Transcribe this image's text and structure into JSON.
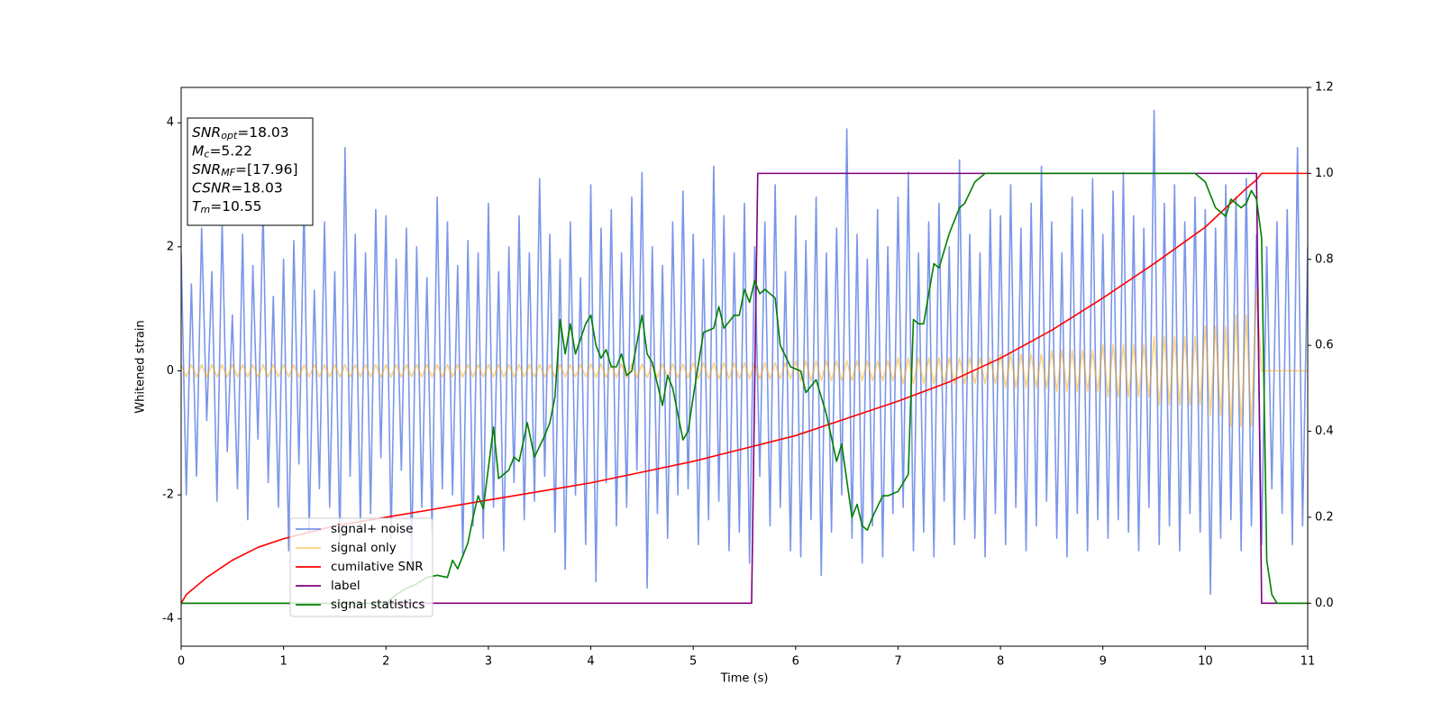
{
  "chart_data": {
    "type": "line",
    "xlabel": "Time (s)",
    "ylabel": "Whitened strain",
    "xlim": [
      0,
      11
    ],
    "xticks": [
      0,
      1,
      2,
      3,
      4,
      5,
      6,
      7,
      8,
      9,
      10,
      11
    ],
    "ylim": [
      -4.44,
      4.57
    ],
    "yticks": [
      -4,
      -2,
      0,
      2,
      4
    ],
    "y2lim": [
      -0.1,
      1.2
    ],
    "y2ticks": [
      {
        "value": 0,
        "label": "0.0"
      },
      {
        "value": 0.2,
        "label": "0.2"
      },
      {
        "value": 0.4,
        "label": "0.4"
      },
      {
        "value": 0.6,
        "label": "0.6"
      },
      {
        "value": 0.8,
        "label": "0.8"
      },
      {
        "value": 1,
        "label": "1.0"
      },
      {
        "value": 1.2,
        "label": "1.2"
      }
    ],
    "legend": "lower left",
    "annotation": [
      {
        "symbol": "SNR",
        "sub": "opt",
        "text": "=18.03"
      },
      {
        "symbol": "M",
        "sub": "c",
        "text": "=5.22"
      },
      {
        "symbol": "SNR",
        "sub": "MF",
        "text": "=[17.96]"
      },
      {
        "symbol": "CSNR",
        "sub": "",
        "text": "=18.03"
      },
      {
        "symbol": "T",
        "sub": "m",
        "text": "=10.55"
      }
    ],
    "x": [
      0,
      0.05,
      0.1,
      0.15,
      0.2,
      0.25,
      0.3,
      0.35,
      0.4,
      0.45,
      0.5,
      0.55,
      0.6,
      0.65,
      0.7,
      0.75,
      0.8,
      0.85,
      0.9,
      0.95,
      1,
      1.05,
      1.1,
      1.15,
      1.2,
      1.25,
      1.3,
      1.35,
      1.4,
      1.45,
      1.5,
      1.55,
      1.6,
      1.65,
      1.7,
      1.75,
      1.8,
      1.85,
      1.9,
      1.95,
      2,
      2.05,
      2.1,
      2.15,
      2.2,
      2.25,
      2.3,
      2.35,
      2.4,
      2.45,
      2.5,
      2.55,
      2.6,
      2.65,
      2.7,
      2.75,
      2.8,
      2.85,
      2.9,
      2.95,
      3,
      3.05,
      3.1,
      3.15,
      3.2,
      3.25,
      3.3,
      3.35,
      3.4,
      3.45,
      3.5,
      3.55,
      3.6,
      3.65,
      3.7,
      3.75,
      3.8,
      3.85,
      3.9,
      3.95,
      4,
      4.05,
      4.1,
      4.15,
      4.2,
      4.25,
      4.3,
      4.35,
      4.4,
      4.45,
      4.5,
      4.55,
      4.6,
      4.65,
      4.7,
      4.75,
      4.8,
      4.85,
      4.9,
      4.95,
      5,
      5.05,
      5.1,
      5.15,
      5.2,
      5.25,
      5.3,
      5.35,
      5.4,
      5.45,
      5.5,
      5.55,
      5.6,
      5.65,
      5.7,
      5.75,
      5.8,
      5.85,
      5.9,
      5.95,
      6,
      6.05,
      6.1,
      6.15,
      6.2,
      6.25,
      6.3,
      6.35,
      6.4,
      6.45,
      6.5,
      6.55,
      6.6,
      6.65,
      6.7,
      6.75,
      6.8,
      6.85,
      6.9,
      6.95,
      7,
      7.05,
      7.1,
      7.15,
      7.2,
      7.25,
      7.3,
      7.35,
      7.4,
      7.45,
      7.5,
      7.55,
      7.6,
      7.65,
      7.7,
      7.75,
      7.8,
      7.85,
      7.9,
      7.95,
      8,
      8.05,
      8.1,
      8.15,
      8.2,
      8.25,
      8.3,
      8.35,
      8.4,
      8.45,
      8.5,
      8.55,
      8.6,
      8.65,
      8.7,
      8.75,
      8.8,
      8.85,
      8.9,
      8.95,
      9,
      9.05,
      9.1,
      9.15,
      9.2,
      9.25,
      9.3,
      9.35,
      9.4,
      9.45,
      9.5,
      9.55,
      9.6,
      9.65,
      9.7,
      9.75,
      9.8,
      9.85,
      9.9,
      9.95,
      10,
      10.05,
      10.1,
      10.15,
      10.2,
      10.25,
      10.3,
      10.35,
      10.4,
      10.45,
      10.5,
      10.55,
      10.6,
      10.65,
      10.7,
      10.75,
      10.8,
      10.85,
      10.9,
      10.95,
      11
    ],
    "series": [
      {
        "name": "signal+ noise",
        "color": "#4169e1",
        "alpha": 0.7,
        "values": [
          1.9,
          -2.0,
          1.4,
          -1.7,
          2.3,
          -0.8,
          1.6,
          -2.1,
          2.4,
          -1.3,
          0.9,
          -1.9,
          2.2,
          -2.4,
          1.7,
          -1.1,
          2.6,
          -1.8,
          1.2,
          -2.2,
          1.8,
          -2.9,
          2.1,
          -1.5,
          2.7,
          -2.6,
          1.3,
          -1.9,
          2.4,
          -2.2,
          1.6,
          -2.8,
          3.6,
          -1.7,
          2.2,
          -2.5,
          1.9,
          -2.3,
          2.6,
          -1.4,
          2.5,
          -2.7,
          1.8,
          -1.6,
          2.3,
          -3.1,
          2.0,
          -2.2,
          1.5,
          -2.6,
          2.8,
          -1.9,
          2.4,
          -2.0,
          1.7,
          -3.0,
          2.1,
          -2.5,
          1.9,
          -2.7,
          2.7,
          -2.2,
          1.6,
          -2.9,
          2.0,
          -1.8,
          2.5,
          -2.4,
          1.9,
          -2.1,
          3.1,
          -1.7,
          2.2,
          -2.6,
          1.8,
          -3.2,
          2.4,
          -2.0,
          1.5,
          -2.8,
          3.0,
          -3.4,
          2.3,
          -1.8,
          2.6,
          -2.5,
          1.9,
          -2.2,
          2.8,
          -1.6,
          3.2,
          -3.5,
          2.0,
          -2.3,
          1.7,
          -2.7,
          2.4,
          -2.0,
          2.9,
          -1.9,
          2.2,
          -2.8,
          1.8,
          -2.4,
          3.3,
          -2.1,
          2.5,
          -2.9,
          1.9,
          -2.6,
          2.7,
          -3.1,
          2.0,
          -1.7,
          2.4,
          -2.5,
          3.0,
          -2.2,
          1.6,
          -2.9,
          2.5,
          -3.0,
          2.1,
          -2.4,
          2.8,
          -3.3,
          1.9,
          -2.6,
          2.3,
          -2.0,
          3.9,
          -2.7,
          2.2,
          -3.1,
          1.8,
          -2.5,
          2.6,
          -3.0,
          2.0,
          -2.3,
          2.8,
          -2.2,
          3.2,
          -2.9,
          1.9,
          -2.6,
          2.4,
          -3.0,
          2.7,
          -2.1,
          2.0,
          -2.8,
          3.4,
          -2.4,
          2.2,
          -2.7,
          1.9,
          -3.0,
          2.6,
          -2.3,
          2.5,
          -2.8,
          3.0,
          -2.2,
          2.3,
          -2.9,
          2.7,
          -2.5,
          3.3,
          -2.1,
          2.4,
          -2.7,
          1.9,
          -3.0,
          2.8,
          -2.3,
          2.6,
          -2.9,
          3.1,
          -2.4,
          2.2,
          -2.7,
          2.9,
          -2.4,
          3.2,
          -2.6,
          2.5,
          -2.9,
          2.3,
          -2.2,
          4.2,
          -2.8,
          2.7,
          -2.5,
          3.0,
          -2.9,
          2.4,
          -2.3,
          2.8,
          -2.6,
          2.6,
          -3.6,
          2.3,
          -2.7,
          3.0,
          -2.4,
          2.8,
          -2.9,
          3.1,
          -2.5,
          2.2,
          -2.8,
          2.0,
          -1.9,
          2.4,
          -2.3,
          2.6,
          -2.8,
          3.6,
          -2.5,
          2.0
        ]
      },
      {
        "name": "signal only",
        "color": "#ffa500",
        "alpha": 0.5,
        "values": [
          0.1,
          -0.1,
          0.1,
          -0.1,
          0.1,
          -0.1,
          0.1,
          -0.1,
          0.1,
          -0.1,
          0.1,
          -0.1,
          0.1,
          -0.1,
          0.1,
          -0.1,
          0.1,
          -0.1,
          0.1,
          -0.1,
          0.1,
          -0.1,
          0.1,
          -0.1,
          0.1,
          -0.1,
          0.1,
          -0.1,
          0.1,
          -0.1,
          0.1,
          -0.1,
          0.1,
          -0.1,
          0.1,
          -0.1,
          0.1,
          -0.1,
          0.1,
          -0.1,
          0.1,
          -0.1,
          0.1,
          -0.1,
          0.1,
          -0.1,
          0.1,
          -0.1,
          0.1,
          -0.1,
          0.1,
          -0.1,
          0.1,
          -0.1,
          0.1,
          -0.1,
          0.1,
          -0.1,
          0.1,
          -0.1,
          0.1,
          -0.1,
          0.1,
          -0.1,
          0.1,
          -0.1,
          0.1,
          -0.1,
          0.1,
          -0.1,
          0.1,
          -0.1,
          0.1,
          -0.1,
          0.1,
          -0.1,
          0.1,
          -0.1,
          0.1,
          -0.1,
          0.11,
          -0.11,
          0.11,
          -0.11,
          0.11,
          -0.11,
          0.11,
          -0.11,
          0.11,
          -0.11,
          0.11,
          -0.11,
          0.11,
          -0.11,
          0.11,
          -0.11,
          0.11,
          -0.11,
          0.11,
          -0.11,
          0.13,
          -0.13,
          0.13,
          -0.13,
          0.13,
          -0.13,
          0.13,
          -0.13,
          0.13,
          -0.13,
          0.13,
          -0.13,
          0.13,
          -0.13,
          0.13,
          -0.13,
          0.13,
          -0.13,
          0.13,
          -0.13,
          0.16,
          -0.16,
          0.16,
          -0.16,
          0.16,
          -0.16,
          0.16,
          -0.16,
          0.16,
          -0.16,
          0.16,
          -0.16,
          0.16,
          -0.16,
          0.16,
          -0.16,
          0.16,
          -0.16,
          0.16,
          -0.16,
          0.21,
          -0.21,
          0.21,
          -0.21,
          0.21,
          -0.21,
          0.21,
          -0.21,
          0.21,
          -0.21,
          0.21,
          -0.21,
          0.21,
          -0.21,
          0.21,
          -0.21,
          0.21,
          -0.21,
          0.21,
          -0.21,
          0.27,
          -0.27,
          0.27,
          -0.27,
          0.27,
          -0.27,
          0.27,
          -0.27,
          0.27,
          -0.27,
          0.33,
          -0.33,
          0.33,
          -0.33,
          0.33,
          -0.33,
          0.33,
          -0.33,
          0.33,
          -0.33,
          0.42,
          -0.42,
          0.42,
          -0.42,
          0.42,
          -0.42,
          0.42,
          -0.42,
          0.42,
          -0.42,
          0.55,
          -0.55,
          0.55,
          -0.55,
          0.55,
          -0.55,
          0.55,
          -0.55,
          0.55,
          -0.55,
          0.72,
          -0.72,
          0.72,
          -0.72,
          0.72,
          -0.9,
          0.9,
          -0.9,
          0.9,
          -0.9,
          1.3,
          0,
          0,
          0,
          0,
          0,
          0,
          0,
          0,
          0,
          0
        ]
      },
      {
        "name": "cumilative SNR",
        "color": "#ff0000",
        "axis": "y2",
        "x": [
          0,
          0.05,
          0.1,
          0.25,
          0.5,
          0.75,
          1,
          1.5,
          2,
          2.5,
          3,
          3.5,
          4,
          4.5,
          5,
          5.5,
          6,
          6.5,
          7,
          7.5,
          8,
          8.5,
          9,
          9.5,
          10,
          10.2,
          10.4,
          10.5,
          10.55,
          11
        ],
        "values": [
          0,
          0.02,
          0.03,
          0.06,
          0.1,
          0.13,
          0.15,
          0.18,
          0.2,
          0.22,
          0.24,
          0.26,
          0.28,
          0.305,
          0.33,
          0.36,
          0.39,
          0.43,
          0.47,
          0.515,
          0.57,
          0.635,
          0.71,
          0.79,
          0.875,
          0.92,
          0.965,
          0.985,
          1,
          1
        ]
      },
      {
        "name": "label",
        "color": "#800080",
        "axis": "y2",
        "x": [
          0,
          5.57,
          5.63,
          10.5,
          10.55,
          11
        ],
        "values": [
          0,
          0,
          1,
          1,
          0,
          0
        ]
      },
      {
        "name": "signal statistics",
        "color": "#008000",
        "axis": "y2",
        "x": [
          0,
          2.0,
          2.1,
          2.2,
          2.3,
          2.4,
          2.5,
          2.6,
          2.65,
          2.7,
          2.8,
          2.85,
          2.9,
          2.95,
          3.05,
          3.1,
          3.2,
          3.25,
          3.3,
          3.38,
          3.45,
          3.55,
          3.6,
          3.65,
          3.7,
          3.75,
          3.8,
          3.85,
          3.95,
          4.0,
          4.05,
          4.1,
          4.15,
          4.2,
          4.25,
          4.3,
          4.35,
          4.4,
          4.5,
          4.55,
          4.6,
          4.7,
          4.75,
          4.8,
          4.9,
          4.95,
          5.0,
          5.1,
          5.2,
          5.25,
          5.3,
          5.4,
          5.45,
          5.5,
          5.55,
          5.6,
          5.65,
          5.7,
          5.8,
          5.85,
          5.95,
          6.05,
          6.1,
          6.2,
          6.3,
          6.4,
          6.45,
          6.55,
          6.6,
          6.65,
          6.7,
          6.75,
          6.85,
          6.9,
          7.0,
          7.05,
          7.1,
          7.15,
          7.2,
          7.25,
          7.35,
          7.4,
          7.5,
          7.6,
          7.65,
          7.75,
          7.85,
          8.0,
          8.5,
          9.0,
          9.9,
          10.0,
          10.1,
          10.2,
          10.25,
          10.3,
          10.35,
          10.4,
          10.45,
          10.5,
          10.55,
          10.6,
          10.65,
          10.7,
          11.0
        ],
        "values": [
          0,
          0,
          0.02,
          0.035,
          0.045,
          0.06,
          0.065,
          0.06,
          0.1,
          0.08,
          0.14,
          0.2,
          0.25,
          0.22,
          0.41,
          0.29,
          0.31,
          0.34,
          0.33,
          0.42,
          0.34,
          0.39,
          0.42,
          0.48,
          0.66,
          0.58,
          0.65,
          0.58,
          0.65,
          0.67,
          0.6,
          0.57,
          0.59,
          0.55,
          0.55,
          0.58,
          0.53,
          0.54,
          0.67,
          0.58,
          0.56,
          0.46,
          0.53,
          0.5,
          0.38,
          0.4,
          0.48,
          0.63,
          0.64,
          0.69,
          0.64,
          0.67,
          0.67,
          0.73,
          0.7,
          0.75,
          0.72,
          0.73,
          0.71,
          0.6,
          0.55,
          0.54,
          0.49,
          0.52,
          0.44,
          0.33,
          0.37,
          0.2,
          0.23,
          0.18,
          0.17,
          0.2,
          0.25,
          0.25,
          0.26,
          0.28,
          0.3,
          0.66,
          0.65,
          0.65,
          0.79,
          0.78,
          0.86,
          0.92,
          0.93,
          0.98,
          1.0,
          1.0,
          1.0,
          1.0,
          1.0,
          0.98,
          0.92,
          0.9,
          0.94,
          0.93,
          0.92,
          0.93,
          0.96,
          0.94,
          0.85,
          0.1,
          0.02,
          0,
          0
        ]
      }
    ]
  }
}
